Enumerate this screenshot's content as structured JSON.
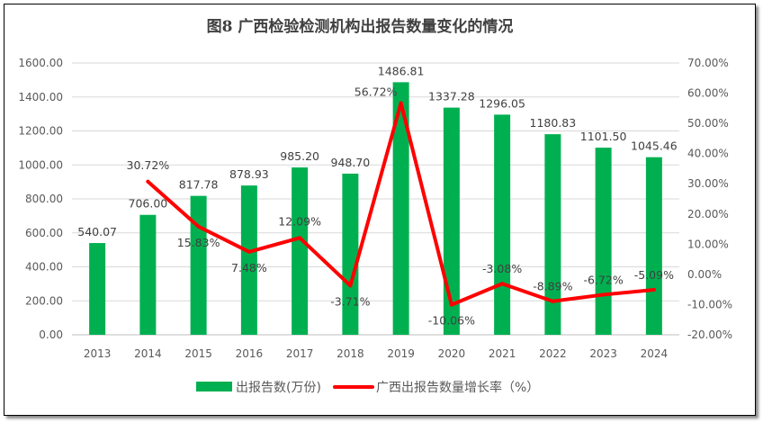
{
  "chart_data": {
    "type": "bar+line",
    "title": "图8  广西检验检测机构出报告数量变化的情况",
    "categories": [
      "2013",
      "2014",
      "2015",
      "2016",
      "2017",
      "2018",
      "2019",
      "2020",
      "2021",
      "2022",
      "2023",
      "2024"
    ],
    "series": [
      {
        "name": "出报告数(万份)",
        "type": "bar",
        "axis": "left",
        "color": "#00b050",
        "values": [
          540.07,
          706.0,
          817.78,
          878.93,
          985.2,
          948.7,
          1486.81,
          1337.28,
          1296.05,
          1180.83,
          1101.5,
          1045.46
        ],
        "labels": [
          "540.07",
          "706.00",
          "817.78",
          "878.93",
          "985.20",
          "948.70",
          "1486.81",
          "1337.28",
          "1296.05",
          "1180.83",
          "1101.50",
          "1045.46"
        ]
      },
      {
        "name": "广西出报告数量增长率（%）",
        "type": "line",
        "axis": "right",
        "color": "#ff0000",
        "values": [
          null,
          30.72,
          15.83,
          7.48,
          12.09,
          -3.71,
          56.72,
          -10.06,
          -3.08,
          -8.89,
          -6.72,
          -5.09
        ],
        "labels": [
          null,
          "30.72%",
          "15.83%",
          "7.48%",
          "12.09%",
          "-3.71%",
          "56.72%",
          "-10.06%",
          "-3.08%",
          "-8.89%",
          "-6.72%",
          "-5.09%"
        ]
      }
    ],
    "y_left": {
      "range": [
        0,
        1600
      ],
      "ticks": [
        "0.00",
        "200.00",
        "400.00",
        "600.00",
        "800.00",
        "1000.00",
        "1200.00",
        "1400.00",
        "1600.00"
      ]
    },
    "y_right": {
      "range": [
        -20,
        70
      ],
      "ticks": [
        "-20.00%",
        "-10.00%",
        "0.00%",
        "10.00%",
        "20.00%",
        "30.00%",
        "40.00%",
        "50.00%",
        "60.00%",
        "70.00%"
      ]
    },
    "grid": true,
    "legend": "bottom"
  }
}
